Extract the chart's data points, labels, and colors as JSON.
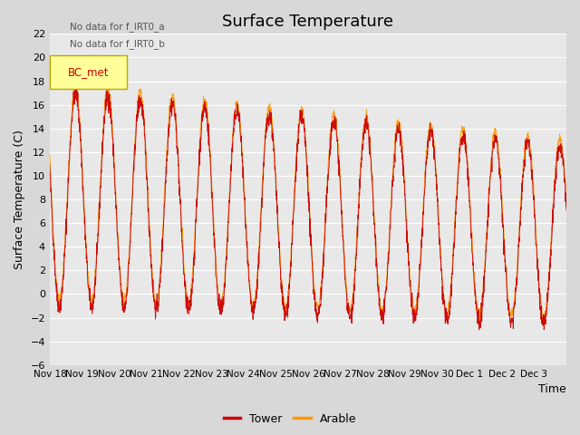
{
  "title": "Surface Temperature",
  "ylabel": "Surface Temperature (C)",
  "xlabel": "Time",
  "ylim": [
    -6,
    22
  ],
  "yticks": [
    -6,
    -4,
    -2,
    0,
    2,
    4,
    6,
    8,
    10,
    12,
    14,
    16,
    18,
    20,
    22
  ],
  "x_tick_labels": [
    "Nov 18",
    "Nov 19",
    "Nov 20",
    "Nov 21",
    "Nov 22",
    "Nov 23",
    "Nov 24",
    "Nov 25",
    "Nov 26",
    "Nov 27",
    "Nov 28",
    "Nov 29",
    "Nov 30",
    "Dec 1",
    "Dec 2",
    "Dec 3"
  ],
  "tower_color": "#cc0000",
  "arable_color": "#ff9900",
  "fig_bg_color": "#d8d8d8",
  "plot_bg_color": "#e8e8e8",
  "grid_color": "#ffffff",
  "annotation_text_1": "No data for f_IRT0_a",
  "annotation_text_2": "No data for f_IRT0_b",
  "legend_bc_met": "BC_met",
  "legend_tower": "Tower",
  "legend_arable": "Arable",
  "title_fontsize": 13,
  "label_fontsize": 9,
  "tick_fontsize": 8
}
